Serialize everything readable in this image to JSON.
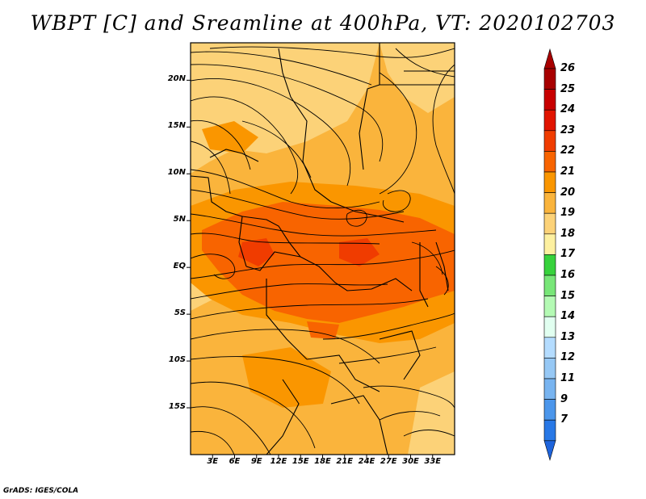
{
  "title": "WBPT [C] and Sreamline at 400hPa, VT: 2020102703",
  "credit": "GrADS: IGES/COLA",
  "map": {
    "lon_range": [
      0,
      36
    ],
    "lat_range": [
      -20,
      24
    ],
    "lat_labels": [
      {
        "lat": 20,
        "text": "20N"
      },
      {
        "lat": 15,
        "text": "15N"
      },
      {
        "lat": 10,
        "text": "10N"
      },
      {
        "lat": 5,
        "text": "5N"
      },
      {
        "lat": 0,
        "text": "EQ"
      },
      {
        "lat": -5,
        "text": "5S"
      },
      {
        "lat": -10,
        "text": "10S"
      },
      {
        "lat": -15,
        "text": "15S"
      }
    ],
    "lon_labels": [
      {
        "lon": 3,
        "text": "3E"
      },
      {
        "lon": 6,
        "text": "6E"
      },
      {
        "lon": 9,
        "text": "9E"
      },
      {
        "lon": 12,
        "text": "12E"
      },
      {
        "lon": 15,
        "text": "15E"
      },
      {
        "lon": 18,
        "text": "18E"
      },
      {
        "lon": 21,
        "text": "21E"
      },
      {
        "lon": 24,
        "text": "24E"
      },
      {
        "lon": 27,
        "text": "27E"
      },
      {
        "lon": 30,
        "text": "30E"
      },
      {
        "lon": 33,
        "text": "33E"
      }
    ]
  },
  "colorbar": {
    "levels": [
      {
        "label": "26",
        "color": "#a80000"
      },
      {
        "label": "25",
        "color": "#c80000"
      },
      {
        "label": "24",
        "color": "#e11400"
      },
      {
        "label": "23",
        "color": "#f03c00"
      },
      {
        "label": "22",
        "color": "#f86400"
      },
      {
        "label": "21",
        "color": "#fa9600"
      },
      {
        "label": "20",
        "color": "#fab43c"
      },
      {
        "label": "19",
        "color": "#fcd278"
      },
      {
        "label": "18",
        "color": "#fdf0a0"
      },
      {
        "label": "17",
        "color": "#37d23c"
      },
      {
        "label": "16",
        "color": "#78e678"
      },
      {
        "label": "15",
        "color": "#b4fab4"
      },
      {
        "label": "14",
        "color": "#e1fff0"
      },
      {
        "label": "13",
        "color": "#b4dcff"
      },
      {
        "label": "12",
        "color": "#96c8f5"
      },
      {
        "label": "11",
        "color": "#78b4f0"
      },
      {
        "label": "9",
        "color": "#4b96eb"
      },
      {
        "label": "7",
        "color": "#2878e6"
      }
    ],
    "bottom_color": "#1e64dc"
  }
}
